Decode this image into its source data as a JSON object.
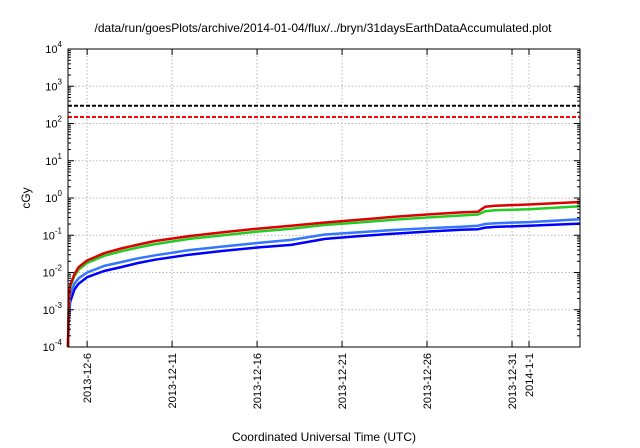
{
  "chart_data": {
    "type": "line",
    "title": "/data/run/goesPlots/archive/2014-01-04/flux/../bryn/31daysEarthDataAccumulated.plot",
    "xlabel": "Coordinated Universal Time (UTC)",
    "ylabel": "cGy",
    "y_scale": "log",
    "ylim": [
      0.0001,
      10000
    ],
    "y_ticks": [
      {
        "value": 0.0001,
        "base": "10",
        "exp": "-4"
      },
      {
        "value": 0.001,
        "base": "10",
        "exp": "-3"
      },
      {
        "value": 0.01,
        "base": "10",
        "exp": "-2"
      },
      {
        "value": 0.1,
        "base": "10",
        "exp": "-1"
      },
      {
        "value": 1,
        "base": "10",
        "exp": "0"
      },
      {
        "value": 10,
        "base": "10",
        "exp": "1"
      },
      {
        "value": 100,
        "base": "10",
        "exp": "2"
      },
      {
        "value": 1000,
        "base": "10",
        "exp": "3"
      },
      {
        "value": 10000,
        "base": "10",
        "exp": "4"
      }
    ],
    "xlim": [
      "2013-12-04T21:00",
      "2014-01-04T00:00"
    ],
    "x_ticks": [
      {
        "value": "2013-12-06",
        "label": "2013-12-6"
      },
      {
        "value": "2013-12-11",
        "label": "2013-12-11"
      },
      {
        "value": "2013-12-16",
        "label": "2013-12-16"
      },
      {
        "value": "2013-12-21",
        "label": "2013-12-21"
      },
      {
        "value": "2013-12-26",
        "label": "2013-12-26"
      },
      {
        "value": "2013-12-31",
        "label": "2013-12-31"
      },
      {
        "value": "2014-01-01",
        "label": "2014-1-1"
      }
    ],
    "grid": true,
    "series": [
      {
        "color": "#0000ff",
        "points": [
          [
            "2013-12-04T21:00",
            0.0001
          ],
          [
            "2013-12-04T22:00",
            0.0005
          ],
          [
            "2013-12-05T00:00",
            0.0016
          ],
          [
            "2013-12-05T06:00",
            0.0035
          ],
          [
            "2013-12-05T12:00",
            0.005
          ],
          [
            "2013-12-06T00:00",
            0.0075
          ],
          [
            "2013-12-07T00:00",
            0.011
          ],
          [
            "2013-12-08T00:00",
            0.014
          ],
          [
            "2013-12-09T00:00",
            0.018
          ],
          [
            "2013-12-10T00:00",
            0.022
          ],
          [
            "2013-12-12T00:00",
            0.03
          ],
          [
            "2013-12-14T00:00",
            0.038
          ],
          [
            "2013-12-16T00:00",
            0.047
          ],
          [
            "2013-12-18T00:00",
            0.055
          ],
          [
            "2013-12-20T00:00",
            0.08
          ],
          [
            "2013-12-22T00:00",
            0.095
          ],
          [
            "2013-12-24T00:00",
            0.11
          ],
          [
            "2013-12-26T00:00",
            0.125
          ],
          [
            "2013-12-28T00:00",
            0.14
          ],
          [
            "2013-12-29T00:00",
            0.145
          ],
          [
            "2013-12-29T10:00",
            0.16
          ],
          [
            "2013-12-30T00:00",
            0.168
          ],
          [
            "2014-01-01T00:00",
            0.18
          ],
          [
            "2014-01-04T00:00",
            0.205
          ]
        ]
      },
      {
        "color": "#3377ff",
        "points": [
          [
            "2013-12-04T21:00",
            0.0001
          ],
          [
            "2013-12-04T22:00",
            0.0007
          ],
          [
            "2013-12-05T00:00",
            0.0025
          ],
          [
            "2013-12-05T06:00",
            0.005
          ],
          [
            "2013-12-05T12:00",
            0.007
          ],
          [
            "2013-12-06T00:00",
            0.01
          ],
          [
            "2013-12-07T00:00",
            0.015
          ],
          [
            "2013-12-08T00:00",
            0.019
          ],
          [
            "2013-12-09T00:00",
            0.024
          ],
          [
            "2013-12-10T00:00",
            0.029
          ],
          [
            "2013-12-12T00:00",
            0.04
          ],
          [
            "2013-12-14T00:00",
            0.05
          ],
          [
            "2013-12-16T00:00",
            0.062
          ],
          [
            "2013-12-18T00:00",
            0.075
          ],
          [
            "2013-12-20T00:00",
            0.105
          ],
          [
            "2013-12-22T00:00",
            0.12
          ],
          [
            "2013-12-24T00:00",
            0.138
          ],
          [
            "2013-12-26T00:00",
            0.155
          ],
          [
            "2013-12-28T00:00",
            0.17
          ],
          [
            "2013-12-29T00:00",
            0.18
          ],
          [
            "2013-12-29T10:00",
            0.2
          ],
          [
            "2013-12-30T00:00",
            0.21
          ],
          [
            "2014-01-01T00:00",
            0.225
          ],
          [
            "2014-01-04T00:00",
            0.27
          ]
        ]
      },
      {
        "color": "#22cc22",
        "points": [
          [
            "2013-12-04T21:00",
            0.0001
          ],
          [
            "2013-12-04T22:00",
            0.0011
          ],
          [
            "2013-12-05T00:00",
            0.004
          ],
          [
            "2013-12-05T06:00",
            0.008
          ],
          [
            "2013-12-05T12:00",
            0.012
          ],
          [
            "2013-12-06T00:00",
            0.018
          ],
          [
            "2013-12-07T00:00",
            0.028
          ],
          [
            "2013-12-08T00:00",
            0.037
          ],
          [
            "2013-12-09T00:00",
            0.047
          ],
          [
            "2013-12-10T00:00",
            0.058
          ],
          [
            "2013-12-12T00:00",
            0.08
          ],
          [
            "2013-12-14T00:00",
            0.1
          ],
          [
            "2013-12-16T00:00",
            0.125
          ],
          [
            "2013-12-18T00:00",
            0.15
          ],
          [
            "2013-12-20T00:00",
            0.19
          ],
          [
            "2013-12-22T00:00",
            0.22
          ],
          [
            "2013-12-24T00:00",
            0.26
          ],
          [
            "2013-12-26T00:00",
            0.3
          ],
          [
            "2013-12-28T00:00",
            0.34
          ],
          [
            "2013-12-29T00:00",
            0.36
          ],
          [
            "2013-12-29T10:00",
            0.44
          ],
          [
            "2013-12-30T00:00",
            0.47
          ],
          [
            "2014-01-01T00:00",
            0.5
          ],
          [
            "2014-01-04T00:00",
            0.6
          ]
        ]
      },
      {
        "color": "#dd0000",
        "points": [
          [
            "2013-12-04T21:00",
            0.0001
          ],
          [
            "2013-12-04T22:00",
            0.0013
          ],
          [
            "2013-12-05T00:00",
            0.0045
          ],
          [
            "2013-12-05T06:00",
            0.009
          ],
          [
            "2013-12-05T12:00",
            0.014
          ],
          [
            "2013-12-06T00:00",
            0.021
          ],
          [
            "2013-12-07T00:00",
            0.033
          ],
          [
            "2013-12-08T00:00",
            0.044
          ],
          [
            "2013-12-09T00:00",
            0.056
          ],
          [
            "2013-12-10T00:00",
            0.07
          ],
          [
            "2013-12-12T00:00",
            0.095
          ],
          [
            "2013-12-14T00:00",
            0.12
          ],
          [
            "2013-12-16T00:00",
            0.15
          ],
          [
            "2013-12-18T00:00",
            0.18
          ],
          [
            "2013-12-20T00:00",
            0.22
          ],
          [
            "2013-12-22T00:00",
            0.26
          ],
          [
            "2013-12-24T00:00",
            0.31
          ],
          [
            "2013-12-26T00:00",
            0.36
          ],
          [
            "2013-12-28T00:00",
            0.41
          ],
          [
            "2013-12-29T00:00",
            0.43
          ],
          [
            "2013-12-29T10:00",
            0.58
          ],
          [
            "2013-12-30T00:00",
            0.62
          ],
          [
            "2014-01-01T00:00",
            0.67
          ],
          [
            "2014-01-04T00:00",
            0.78
          ]
        ]
      }
    ],
    "reference_lines": [
      {
        "y": 300,
        "color": "#000000",
        "style": "dashed"
      },
      {
        "y": 150,
        "color": "#ff0000",
        "style": "dashed"
      }
    ]
  }
}
